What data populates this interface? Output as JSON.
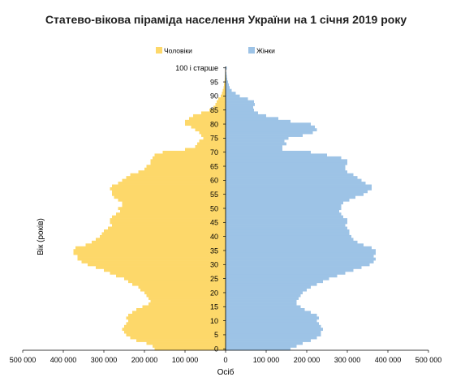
{
  "chart_data": {
    "type": "bar",
    "orientation": "horizontal-pyramid",
    "title": "Статево-вікова піраміда населення України на 1 січня 2019 року",
    "xlabel": "Осіб",
    "ylabel": "Вік (років)",
    "xlim": [
      -500000,
      500000
    ],
    "x_ticks": [
      {
        "value": -500000,
        "label": "500 000"
      },
      {
        "value": -400000,
        "label": "400 000"
      },
      {
        "value": -300000,
        "label": "300 000"
      },
      {
        "value": -200000,
        "label": "200 000"
      },
      {
        "value": -100000,
        "label": "100 000"
      },
      {
        "value": 0,
        "label": "0"
      },
      {
        "value": 100000,
        "label": "100 000"
      },
      {
        "value": 200000,
        "label": "200 000"
      },
      {
        "value": 300000,
        "label": "300 000"
      },
      {
        "value": 400000,
        "label": "400 000"
      },
      {
        "value": 500000,
        "label": "500 000"
      }
    ],
    "y_ticks": [
      {
        "age": 0,
        "label": "0"
      },
      {
        "age": 5,
        "label": "5"
      },
      {
        "age": 10,
        "label": "10"
      },
      {
        "age": 15,
        "label": "15"
      },
      {
        "age": 20,
        "label": "20"
      },
      {
        "age": 25,
        "label": "25"
      },
      {
        "age": 30,
        "label": "30"
      },
      {
        "age": 35,
        "label": "35"
      },
      {
        "age": 40,
        "label": "40"
      },
      {
        "age": 45,
        "label": "45"
      },
      {
        "age": 50,
        "label": "50"
      },
      {
        "age": 55,
        "label": "55"
      },
      {
        "age": 60,
        "label": "60"
      },
      {
        "age": 65,
        "label": "65"
      },
      {
        "age": 70,
        "label": "70"
      },
      {
        "age": 75,
        "label": "75"
      },
      {
        "age": 80,
        "label": "80"
      },
      {
        "age": 85,
        "label": "85"
      },
      {
        "age": 90,
        "label": "90"
      },
      {
        "age": 95,
        "label": "95"
      },
      {
        "age": 100,
        "label": "100 і старше"
      }
    ],
    "legend_position": "top",
    "grid": false,
    "ages": [
      0,
      1,
      2,
      3,
      4,
      5,
      6,
      7,
      8,
      9,
      10,
      11,
      12,
      13,
      14,
      15,
      16,
      17,
      18,
      19,
      20,
      21,
      22,
      23,
      24,
      25,
      26,
      27,
      28,
      29,
      30,
      31,
      32,
      33,
      34,
      35,
      36,
      37,
      38,
      39,
      40,
      41,
      42,
      43,
      44,
      45,
      46,
      47,
      48,
      49,
      50,
      51,
      52,
      53,
      54,
      55,
      56,
      57,
      58,
      59,
      60,
      61,
      62,
      63,
      64,
      65,
      66,
      67,
      68,
      69,
      70,
      71,
      72,
      73,
      74,
      75,
      76,
      77,
      78,
      79,
      80,
      81,
      82,
      83,
      84,
      85,
      86,
      87,
      88,
      89,
      90,
      91,
      92,
      93,
      94,
      95,
      96,
      97,
      98,
      99,
      100
    ],
    "series": [
      {
        "name": "Чоловіки",
        "color": "#fdd86a",
        "values": [
          175000,
          180000,
          195000,
          220000,
          235000,
          245000,
          250000,
          255000,
          250000,
          245000,
          240000,
          245000,
          240000,
          230000,
          220000,
          205000,
          190000,
          185000,
          190000,
          195000,
          200000,
          210000,
          215000,
          230000,
          240000,
          250000,
          270000,
          285000,
          300000,
          320000,
          340000,
          355000,
          365000,
          365000,
          375000,
          375000,
          370000,
          345000,
          330000,
          320000,
          310000,
          305000,
          300000,
          290000,
          280000,
          285000,
          285000,
          280000,
          270000,
          260000,
          265000,
          255000,
          255000,
          265000,
          275000,
          280000,
          280000,
          285000,
          280000,
          265000,
          255000,
          245000,
          235000,
          215000,
          200000,
          195000,
          185000,
          185000,
          180000,
          175000,
          155000,
          100000,
          75000,
          70000,
          65000,
          55000,
          60000,
          65000,
          75000,
          85000,
          100000,
          100000,
          90000,
          80000,
          60000,
          40000,
          30000,
          25000,
          22000,
          18000,
          12000,
          9000,
          7000,
          5000,
          4000,
          3000,
          2000,
          1500,
          1000,
          800,
          600
        ]
      },
      {
        "name": "Жінки",
        "color": "#9dc3e6",
        "values": [
          160000,
          175000,
          190000,
          210000,
          225000,
          235000,
          235000,
          240000,
          235000,
          230000,
          225000,
          230000,
          225000,
          210000,
          195000,
          185000,
          175000,
          175000,
          180000,
          185000,
          190000,
          200000,
          210000,
          225000,
          240000,
          255000,
          275000,
          295000,
          315000,
          335000,
          355000,
          365000,
          370000,
          365000,
          370000,
          370000,
          360000,
          340000,
          325000,
          315000,
          310000,
          305000,
          305000,
          300000,
          295000,
          300000,
          300000,
          290000,
          285000,
          280000,
          285000,
          285000,
          290000,
          305000,
          320000,
          340000,
          350000,
          360000,
          360000,
          345000,
          335000,
          325000,
          315000,
          300000,
          295000,
          295000,
          300000,
          300000,
          285000,
          250000,
          210000,
          140000,
          140000,
          150000,
          145000,
          155000,
          190000,
          215000,
          225000,
          220000,
          210000,
          160000,
          130000,
          100000,
          80000,
          70000,
          68000,
          72000,
          70000,
          55000,
          35000,
          25000,
          15000,
          10000,
          8000,
          6000,
          4000,
          3000,
          2000,
          1000,
          3000
        ]
      }
    ]
  }
}
